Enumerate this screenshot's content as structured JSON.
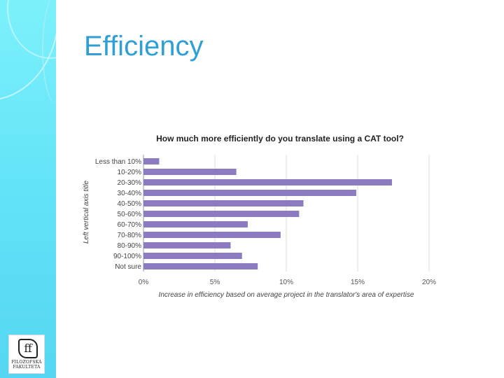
{
  "slide": {
    "title": "Efficiency",
    "logo_text": "FILOZOFSKA FAKULTETA"
  },
  "colors": {
    "sidebar": "#63e3f8",
    "title": "#2f9fd6",
    "bar": "#8d7bc2",
    "grid": "#dddddd"
  },
  "chart_data": {
    "type": "bar",
    "orientation": "horizontal",
    "title": "How much more efficiently do you translate using a CAT tool?",
    "xlabel": "Increase in efficiency based on average project in the translator's area of expertise",
    "ylabel": "Left vertical axis title",
    "categories": [
      "Less than 10%",
      "10-20%",
      "20-30%",
      "30-40%",
      "40-50%",
      "50-60%",
      "60-70%",
      "70-80%",
      "80-90%",
      "90-100%",
      "Not sure"
    ],
    "values": [
      1.1,
      6.5,
      17.4,
      14.9,
      11.2,
      10.9,
      7.3,
      9.6,
      6.1,
      6.9,
      8.0
    ],
    "xlim": [
      0,
      20
    ],
    "xticks": [
      "0%",
      "5%",
      "10%",
      "15%",
      "20%"
    ],
    "xtick_values": [
      0,
      5,
      10,
      15,
      20
    ],
    "grid": true,
    "legend": "none"
  }
}
